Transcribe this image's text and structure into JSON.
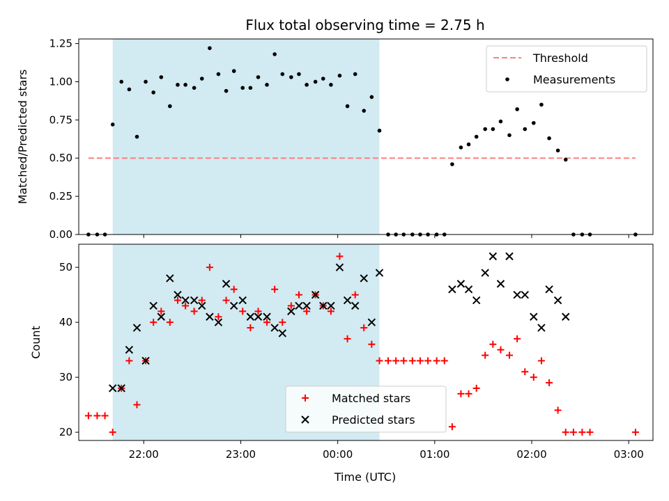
{
  "title": "Flux total observing time = 2.75 h",
  "colors": {
    "shade": "#add8e6",
    "threshold": "#ff7f7f",
    "measurement": "#000000",
    "matched": "#ff0000",
    "predicted": "#000000"
  },
  "chart_data": [
    {
      "type": "scatter",
      "ylabel": "Matched/Predicted stars",
      "ylim": [
        0,
        1.28
      ],
      "yticks": [
        0.0,
        0.25,
        0.5,
        0.75,
        1.0,
        1.25
      ],
      "ytick_labels": [
        "0.00",
        "0.25",
        "0.50",
        "0.75",
        "1.00",
        "1.25"
      ],
      "xlim_hours": [
        21.33,
        27.25
      ],
      "shaded_interval_hours": [
        21.68,
        24.43
      ],
      "threshold": {
        "name": "Threshold",
        "y": 0.5,
        "x_range_hours": [
          21.43,
          27.07
        ]
      },
      "legend": {
        "position": "top-right",
        "entries": [
          "Threshold",
          "Measurements"
        ]
      },
      "series": [
        {
          "name": "Measurements",
          "x_hours": [
            21.43,
            21.52,
            21.6,
            21.68,
            21.77,
            21.85,
            21.93,
            22.02,
            22.1,
            22.18,
            22.27,
            22.35,
            22.43,
            22.52,
            22.6,
            22.68,
            22.77,
            22.85,
            22.93,
            23.02,
            23.1,
            23.18,
            23.27,
            23.35,
            23.43,
            23.52,
            23.6,
            23.68,
            23.77,
            23.85,
            23.93,
            24.02,
            24.1,
            24.18,
            24.27,
            24.35,
            24.43,
            24.52,
            24.6,
            24.68,
            24.77,
            24.85,
            24.93,
            25.02,
            25.1,
            25.18,
            25.27,
            25.35,
            25.43,
            25.52,
            25.6,
            25.68,
            25.77,
            25.85,
            25.93,
            26.02,
            26.1,
            26.18,
            26.27,
            26.35,
            26.43,
            26.52,
            26.6,
            27.07
          ],
          "y": [
            0.0,
            0.0,
            0.0,
            0.72,
            1.0,
            0.95,
            0.64,
            1.0,
            0.93,
            1.03,
            0.84,
            0.98,
            0.98,
            0.96,
            1.02,
            1.22,
            1.05,
            0.94,
            1.07,
            0.96,
            0.96,
            1.03,
            0.98,
            1.18,
            1.05,
            1.03,
            1.05,
            0.98,
            1.0,
            1.02,
            0.98,
            1.04,
            0.84,
            1.05,
            0.81,
            0.9,
            0.68,
            0.0,
            0.0,
            0.0,
            0.0,
            0.0,
            0.0,
            0.0,
            0.0,
            0.46,
            0.57,
            0.59,
            0.64,
            0.69,
            0.69,
            0.74,
            0.65,
            0.82,
            0.69,
            0.73,
            0.85,
            0.63,
            0.55,
            0.49,
            0.0,
            0.0,
            0.0,
            0.0
          ]
        }
      ]
    },
    {
      "type": "scatter",
      "ylabel": "Count",
      "xlabel": "Time (UTC)",
      "ylim": [
        18.5,
        54.2
      ],
      "yticks": [
        20,
        30,
        40,
        50
      ],
      "ytick_labels": [
        "20",
        "30",
        "40",
        "50"
      ],
      "xlim_hours": [
        21.33,
        27.25
      ],
      "xticks_hours": [
        22,
        23,
        24,
        25,
        26,
        27
      ],
      "xtick_labels": [
        "22:00",
        "23:00",
        "00:00",
        "01:00",
        "02:00",
        "03:00"
      ],
      "shaded_interval_hours": [
        21.68,
        24.43
      ],
      "legend": {
        "position": "lower-center",
        "entries": [
          "Matched stars",
          "Predicted stars"
        ]
      },
      "series": [
        {
          "name": "Matched stars",
          "x_hours": [
            21.43,
            21.52,
            21.6,
            21.68,
            21.77,
            21.85,
            21.93,
            22.02,
            22.1,
            22.18,
            22.27,
            22.35,
            22.43,
            22.52,
            22.6,
            22.68,
            22.77,
            22.85,
            22.93,
            23.02,
            23.1,
            23.18,
            23.27,
            23.35,
            23.43,
            23.52,
            23.6,
            23.68,
            23.77,
            23.85,
            23.93,
            24.02,
            24.1,
            24.18,
            24.27,
            24.35,
            24.43,
            24.52,
            24.6,
            24.68,
            24.77,
            24.85,
            24.93,
            25.02,
            25.1,
            25.18,
            25.27,
            25.35,
            25.43,
            25.52,
            25.6,
            25.68,
            25.77,
            25.85,
            25.93,
            26.02,
            26.1,
            26.18,
            26.27,
            26.35,
            26.43,
            26.52,
            26.6,
            27.07
          ],
          "y": [
            23,
            23,
            23,
            20,
            28,
            33,
            25,
            33,
            40,
            42,
            40,
            44,
            43,
            42,
            44,
            50,
            41,
            44,
            46,
            42,
            39,
            42,
            40,
            46,
            40,
            43,
            45,
            42,
            45,
            43,
            42,
            52,
            37,
            45,
            39,
            36,
            33,
            33,
            33,
            33,
            33,
            33,
            33,
            33,
            33,
            21,
            27,
            27,
            28,
            34,
            36,
            35,
            34,
            37,
            31,
            30,
            33,
            29,
            24,
            20,
            20,
            20,
            20,
            20
          ]
        },
        {
          "name": "Predicted stars",
          "x_hours": [
            21.68,
            21.77,
            21.85,
            21.93,
            22.02,
            22.1,
            22.18,
            22.27,
            22.35,
            22.43,
            22.52,
            22.6,
            22.68,
            22.77,
            22.85,
            22.93,
            23.02,
            23.1,
            23.18,
            23.27,
            23.35,
            23.43,
            23.52,
            23.6,
            23.68,
            23.77,
            23.85,
            23.93,
            24.02,
            24.1,
            24.18,
            24.27,
            24.35,
            24.43,
            25.18,
            25.27,
            25.35,
            25.43,
            25.52,
            25.6,
            25.68,
            25.77,
            25.85,
            25.93,
            26.02,
            26.1,
            26.18,
            26.27,
            26.35
          ],
          "y": [
            28,
            28,
            35,
            39,
            33,
            43,
            41,
            48,
            45,
            44,
            44,
            43,
            41,
            40,
            47,
            43,
            44,
            41,
            41,
            41,
            39,
            38,
            42,
            43,
            43,
            45,
            43,
            43,
            50,
            44,
            43,
            48,
            40,
            49,
            46,
            47,
            46,
            44,
            49,
            52,
            47,
            52,
            45,
            45,
            41,
            39,
            46,
            44,
            41
          ]
        }
      ]
    }
  ]
}
